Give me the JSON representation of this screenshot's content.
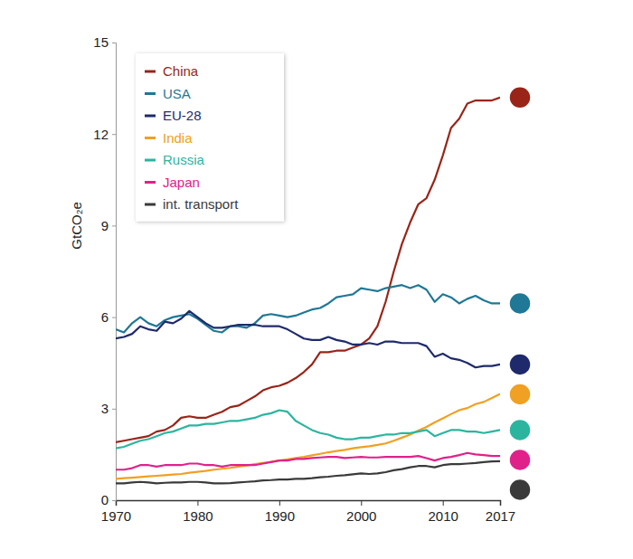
{
  "chart_data": {
    "type": "line",
    "y_label": "GtCO₂e",
    "x": [
      1970,
      1971,
      1972,
      1973,
      1974,
      1975,
      1976,
      1977,
      1978,
      1979,
      1980,
      1981,
      1982,
      1983,
      1984,
      1985,
      1986,
      1987,
      1988,
      1989,
      1990,
      1991,
      1992,
      1993,
      1994,
      1995,
      1996,
      1997,
      1998,
      1999,
      2000,
      2001,
      2002,
      2003,
      2004,
      2005,
      2006,
      2007,
      2008,
      2009,
      2010,
      2011,
      2012,
      2013,
      2014,
      2015,
      2016,
      2017
    ],
    "xlim": [
      1970,
      2017
    ],
    "xticks": [
      1970,
      1980,
      1990,
      2000,
      2010,
      2017
    ],
    "ylim": [
      0,
      15
    ],
    "yticks": [
      0,
      3,
      6,
      9,
      12,
      15
    ],
    "grid": false,
    "legend": "top-left",
    "series": [
      {
        "name": "China",
        "color": "#9a2418",
        "values": [
          1.9,
          1.95,
          2.0,
          2.05,
          2.1,
          2.25,
          2.3,
          2.45,
          2.7,
          2.75,
          2.7,
          2.7,
          2.8,
          2.9,
          3.05,
          3.1,
          3.25,
          3.4,
          3.6,
          3.7,
          3.75,
          3.85,
          4.0,
          4.2,
          4.45,
          4.85,
          4.85,
          4.9,
          4.9,
          5.0,
          5.1,
          5.3,
          5.7,
          6.5,
          7.5,
          8.4,
          9.1,
          9.7,
          9.9,
          10.5,
          11.3,
          12.2,
          12.5,
          13.0,
          13.1,
          13.1,
          13.1,
          13.2
        ]
      },
      {
        "name": "USA",
        "color": "#1f7896",
        "values": [
          5.6,
          5.5,
          5.8,
          6.0,
          5.8,
          5.7,
          5.9,
          6.0,
          6.05,
          6.1,
          5.95,
          5.75,
          5.55,
          5.5,
          5.7,
          5.7,
          5.65,
          5.8,
          6.05,
          6.1,
          6.05,
          6.0,
          6.05,
          6.15,
          6.25,
          6.3,
          6.45,
          6.65,
          6.7,
          6.75,
          6.95,
          6.9,
          6.85,
          6.95,
          7.0,
          7.05,
          6.95,
          7.05,
          6.9,
          6.5,
          6.75,
          6.65,
          6.45,
          6.6,
          6.7,
          6.55,
          6.45,
          6.45
        ]
      },
      {
        "name": "EU-28",
        "color": "#1e2a6b",
        "values": [
          5.3,
          5.35,
          5.45,
          5.7,
          5.6,
          5.55,
          5.85,
          5.8,
          5.95,
          6.2,
          6.0,
          5.8,
          5.65,
          5.65,
          5.7,
          5.75,
          5.75,
          5.75,
          5.7,
          5.7,
          5.7,
          5.6,
          5.45,
          5.3,
          5.25,
          5.25,
          5.35,
          5.25,
          5.2,
          5.1,
          5.1,
          5.15,
          5.1,
          5.2,
          5.2,
          5.15,
          5.15,
          5.15,
          5.05,
          4.7,
          4.8,
          4.65,
          4.6,
          4.5,
          4.35,
          4.4,
          4.4,
          4.45
        ]
      },
      {
        "name": "India",
        "color": "#f0a022",
        "values": [
          0.7,
          0.72,
          0.74,
          0.76,
          0.78,
          0.8,
          0.82,
          0.84,
          0.86,
          0.9,
          0.93,
          0.96,
          1.0,
          1.03,
          1.06,
          1.1,
          1.14,
          1.18,
          1.22,
          1.26,
          1.3,
          1.34,
          1.38,
          1.42,
          1.47,
          1.52,
          1.57,
          1.61,
          1.65,
          1.7,
          1.74,
          1.77,
          1.81,
          1.86,
          1.95,
          2.05,
          2.15,
          2.28,
          2.4,
          2.55,
          2.68,
          2.82,
          2.95,
          3.02,
          3.15,
          3.22,
          3.35,
          3.48
        ]
      },
      {
        "name": "Russia",
        "color": "#2bb59f",
        "values": [
          1.7,
          1.75,
          1.85,
          1.95,
          2.0,
          2.1,
          2.2,
          2.25,
          2.35,
          2.45,
          2.45,
          2.5,
          2.5,
          2.55,
          2.6,
          2.6,
          2.65,
          2.7,
          2.8,
          2.85,
          2.95,
          2.9,
          2.6,
          2.45,
          2.3,
          2.2,
          2.15,
          2.05,
          2.0,
          2.0,
          2.05,
          2.05,
          2.1,
          2.15,
          2.15,
          2.2,
          2.2,
          2.25,
          2.3,
          2.1,
          2.2,
          2.3,
          2.3,
          2.25,
          2.25,
          2.2,
          2.25,
          2.3
        ]
      },
      {
        "name": "Japan",
        "color": "#e0218a",
        "values": [
          1.0,
          1.0,
          1.05,
          1.15,
          1.15,
          1.1,
          1.15,
          1.15,
          1.15,
          1.2,
          1.2,
          1.15,
          1.15,
          1.1,
          1.15,
          1.15,
          1.15,
          1.15,
          1.2,
          1.25,
          1.3,
          1.3,
          1.35,
          1.35,
          1.38,
          1.4,
          1.42,
          1.42,
          1.38,
          1.4,
          1.42,
          1.4,
          1.4,
          1.42,
          1.42,
          1.42,
          1.42,
          1.45,
          1.38,
          1.3,
          1.38,
          1.42,
          1.48,
          1.55,
          1.5,
          1.48,
          1.45,
          1.45
        ]
      },
      {
        "name": "int. transport",
        "color": "#3a3a3a",
        "values": [
          0.55,
          0.55,
          0.58,
          0.6,
          0.58,
          0.55,
          0.57,
          0.58,
          0.58,
          0.6,
          0.6,
          0.58,
          0.55,
          0.55,
          0.56,
          0.58,
          0.6,
          0.62,
          0.65,
          0.66,
          0.68,
          0.68,
          0.7,
          0.7,
          0.72,
          0.75,
          0.77,
          0.8,
          0.82,
          0.85,
          0.88,
          0.86,
          0.88,
          0.92,
          0.98,
          1.02,
          1.08,
          1.12,
          1.12,
          1.08,
          1.15,
          1.18,
          1.18,
          1.2,
          1.22,
          1.25,
          1.27,
          1.28
        ]
      }
    ]
  }
}
